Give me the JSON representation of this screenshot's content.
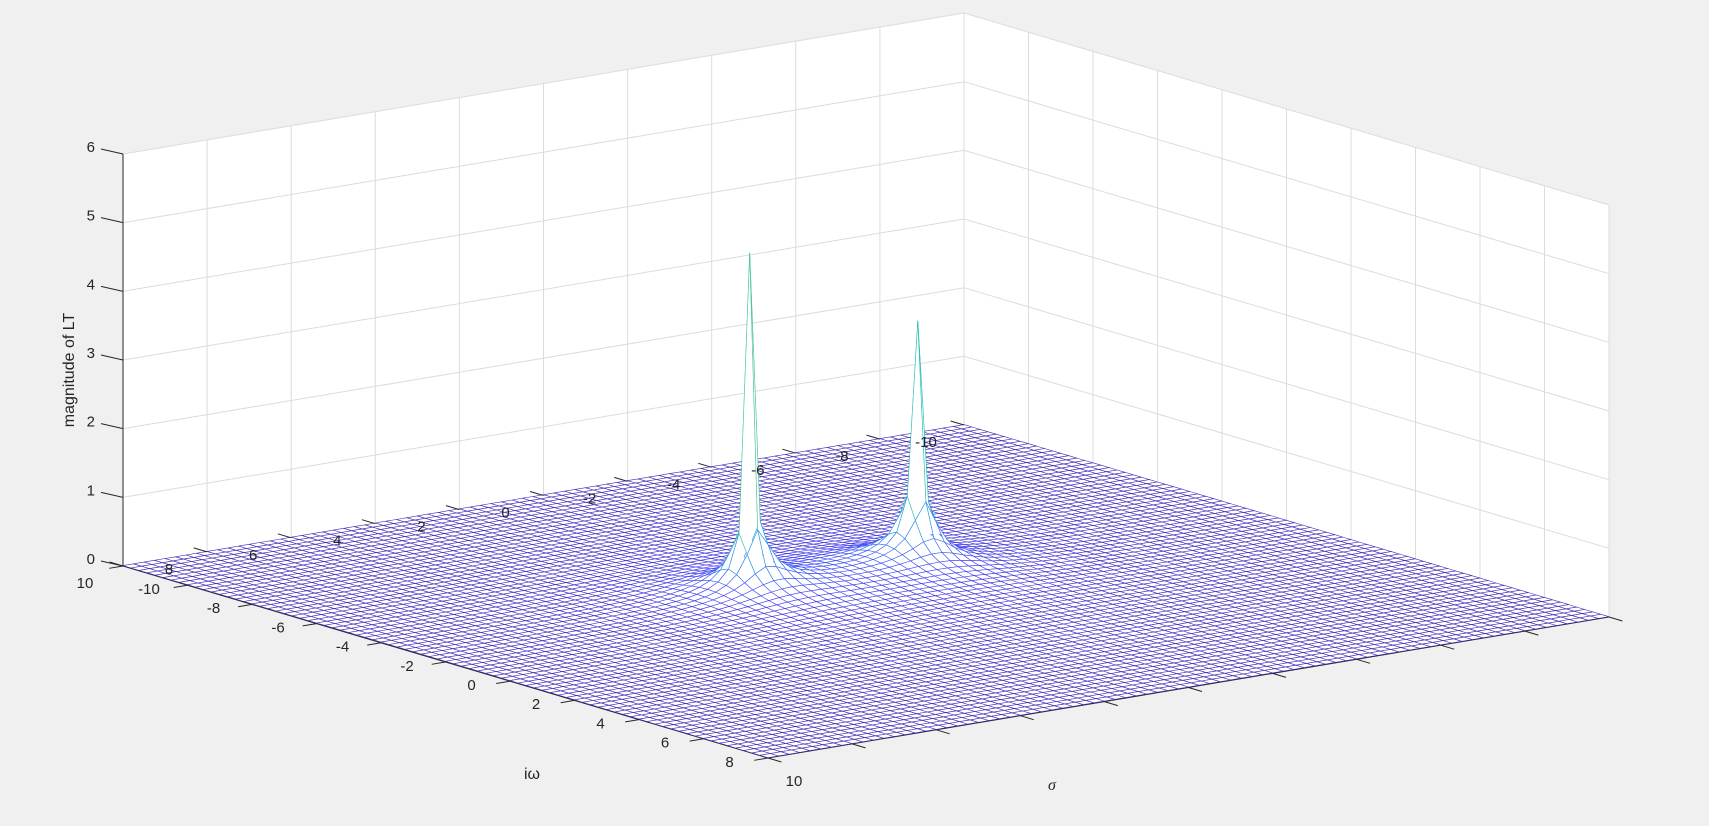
{
  "chart_data": {
    "type": "surface",
    "title": "",
    "xlabel": "σ",
    "ylabel": "iω",
    "zlabel": "magnitude of LT",
    "xlim": [
      -10,
      10
    ],
    "ylim": [
      -10,
      10
    ],
    "zlim": [
      0,
      6
    ],
    "x_ticks": [
      -10,
      -8,
      -6,
      -4,
      -2,
      0,
      2,
      4,
      6,
      8,
      10
    ],
    "y_ticks": [
      -10,
      -8,
      -6,
      -4,
      -2,
      0,
      2,
      4,
      6,
      8,
      10
    ],
    "z_ticks": [
      0,
      1,
      2,
      3,
      4,
      5,
      6
    ],
    "grid": true,
    "grid_resolution": 0.25,
    "colormap": [
      "#3e26a8",
      "#4743f6",
      "#1f96e7",
      "#1cbdbc",
      "#69ce74",
      "#e3c02e",
      "#f9fb15"
    ],
    "peaks": [
      {
        "sigma": -1,
        "omega": 2,
        "peak": 5.0
      },
      {
        "sigma": -1,
        "omega": -2,
        "peak": 3.6
      }
    ],
    "surface_formula": "|1/((s - p1)(s - p2))|, s = σ + iω, clipped at peak"
  }
}
